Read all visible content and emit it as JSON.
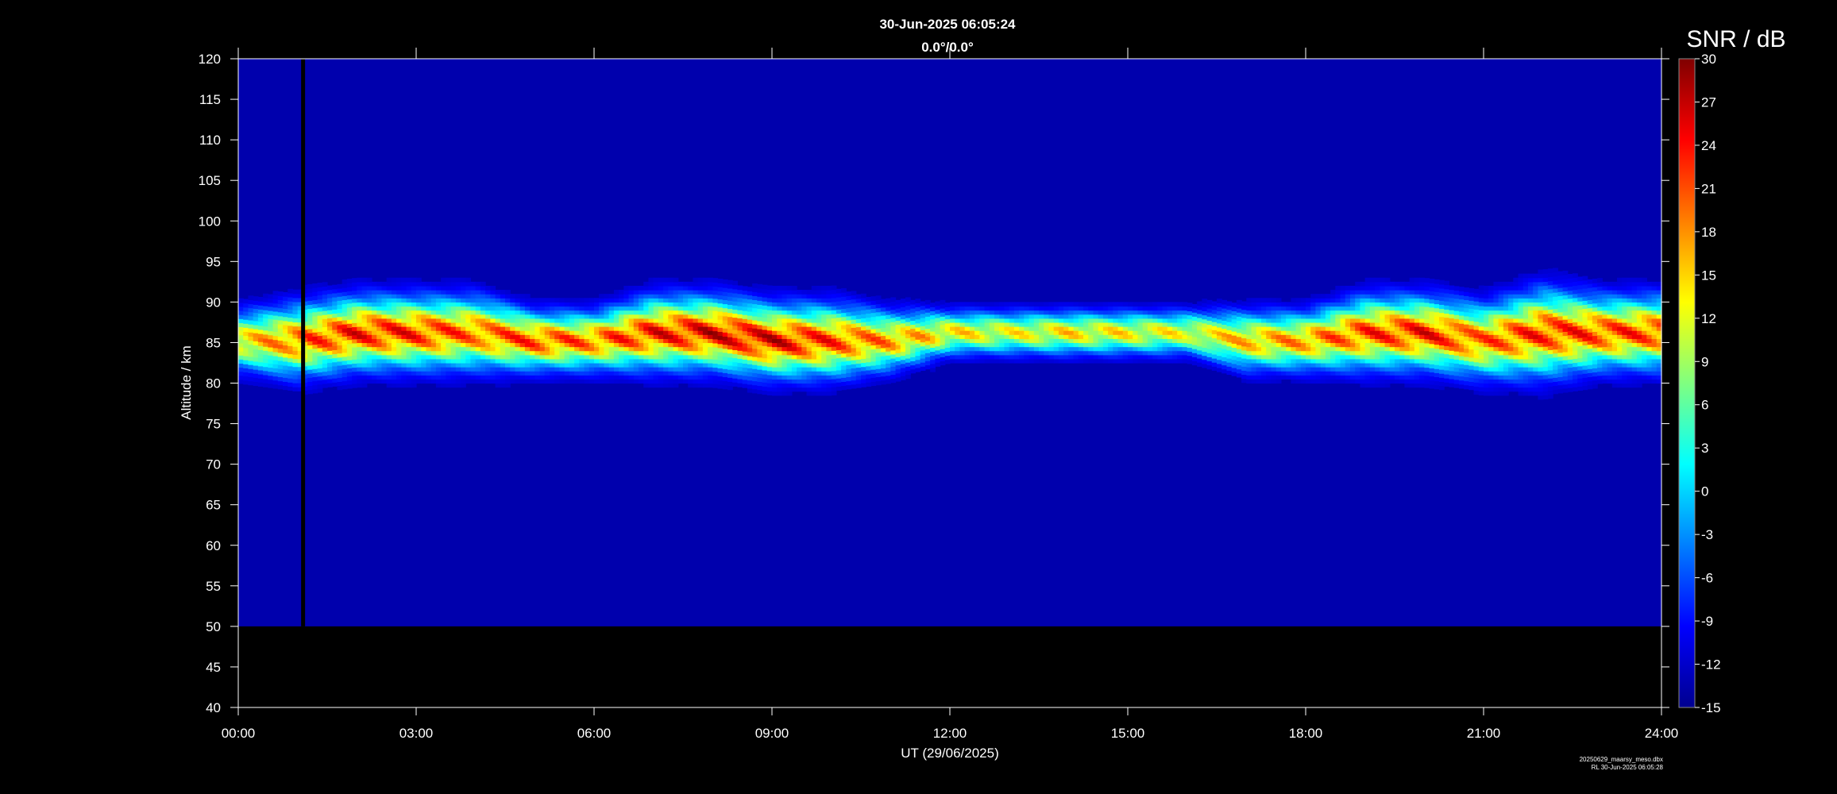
{
  "header": {
    "timestamp": "30-Jun-2025 06:05:24",
    "direction": "0.0°/0.0°"
  },
  "footer": {
    "file_name": "20250629_maarsy_meso.dbx",
    "created": "RL 30-Jun-2025 06:05:28"
  },
  "chart_data": {
    "type": "heatmap",
    "xlabel": "UT (29/06/2025)",
    "ylabel": "Altitude / km",
    "colorbar_label": "SNR / dB",
    "x_ticks": [
      "00:00",
      "03:00",
      "06:00",
      "09:00",
      "12:00",
      "15:00",
      "18:00",
      "21:00",
      "24:00"
    ],
    "x_range_hours": [
      0,
      24
    ],
    "y_ticks": [
      40,
      45,
      50,
      55,
      60,
      65,
      70,
      75,
      80,
      85,
      90,
      95,
      100,
      105,
      110,
      115,
      120
    ],
    "ylim": [
      40,
      120
    ],
    "data_altitude_range": [
      50,
      120
    ],
    "colorbar_ticks": [
      30,
      27,
      24,
      21,
      18,
      15,
      12,
      9,
      6,
      3,
      0,
      -3,
      -6,
      -9,
      -12,
      -15
    ],
    "colorbar_range": [
      -15,
      30
    ],
    "colormap": "jet",
    "background_snr": -13,
    "data_gap_hour": 1.1,
    "layer": {
      "hours": [
        0,
        1,
        2,
        3,
        4,
        5,
        6,
        7,
        8,
        9,
        10,
        11,
        12,
        13,
        14,
        15,
        16,
        17,
        18,
        19,
        20,
        21,
        22,
        23,
        24
      ],
      "center_km": [
        85,
        85,
        86,
        86,
        86,
        85,
        85,
        86,
        86,
        85,
        85,
        85,
        86,
        86,
        86,
        86,
        86,
        85,
        85,
        86,
        86,
        85,
        86,
        86,
        86
      ],
      "half_width_km": [
        4,
        5,
        5,
        5,
        5,
        4,
        4,
        5,
        5,
        5,
        5,
        4,
        3,
        3,
        3,
        3,
        3,
        4,
        4,
        5,
        5,
        5,
        6,
        5,
        5
      ],
      "peak_snr": [
        18,
        24,
        28,
        27,
        24,
        26,
        24,
        28,
        30,
        30,
        26,
        22,
        18,
        16,
        18,
        17,
        16,
        20,
        22,
        26,
        28,
        24,
        27,
        26,
        26
      ]
    }
  }
}
